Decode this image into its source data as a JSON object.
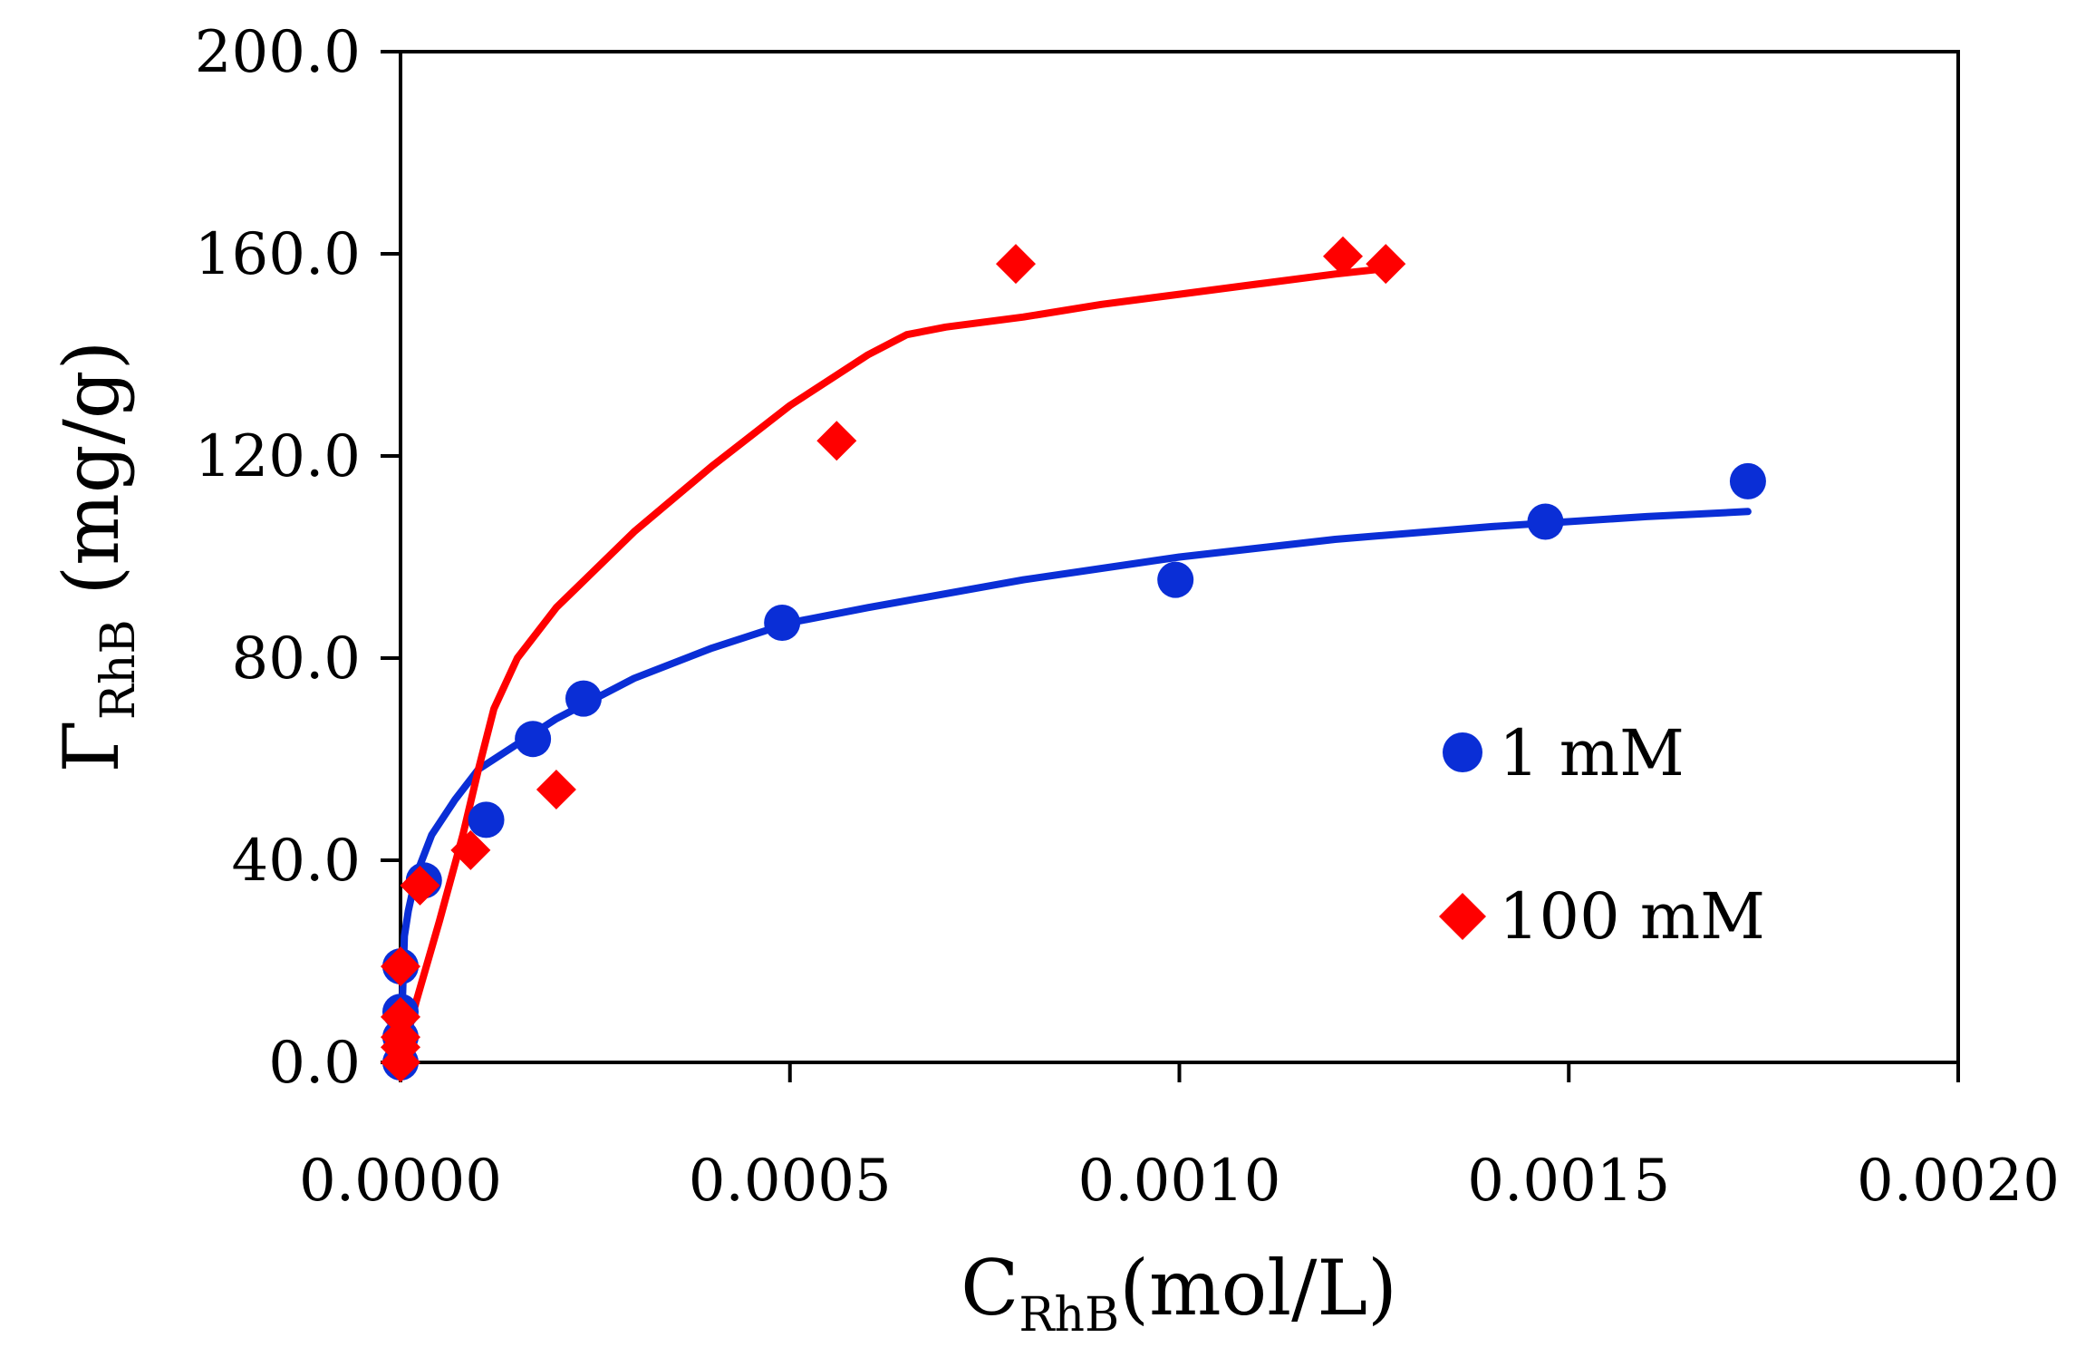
{
  "chart_data": {
    "type": "scatter",
    "xlim": [
      0,
      0.002
    ],
    "ylim": [
      0,
      200
    ],
    "x_ticks": [
      "0.0000",
      "0.0005",
      "0.0010",
      "0.0015",
      "0.0020"
    ],
    "y_ticks": [
      "0.0",
      "40.0",
      "80.0",
      "120.0",
      "160.0",
      "200.0"
    ],
    "x_tick_values": [
      0,
      0.0005,
      0.001,
      0.0015,
      0.002
    ],
    "y_tick_values": [
      0,
      40,
      80,
      120,
      160,
      200
    ],
    "xlabel_main": "C",
    "xlabel_sub": "RhB",
    "xlabel_tail": "(mol/L)",
    "ylabel_main": "Γ",
    "ylabel_sub": "RhB",
    "ylabel_tail": " (mg/g)",
    "grid": false,
    "legend_position": "right-middle",
    "series": [
      {
        "name": "1 mM",
        "marker": "circle",
        "color": "#0a2ed6",
        "points": [
          [
            0,
            0
          ],
          [
            0,
            5
          ],
          [
            0,
            10
          ],
          [
            0,
            19
          ],
          [
            3e-05,
            36
          ],
          [
            0.00011,
            48
          ],
          [
            0.00017,
            64
          ],
          [
            0.000235,
            72
          ],
          [
            0.00049,
            87
          ],
          [
            0.000995,
            95.5
          ],
          [
            0.00147,
            107
          ],
          [
            0.00173,
            115
          ]
        ],
        "fit": [
          [
            0,
            0
          ],
          [
            5e-06,
            25
          ],
          [
            1e-05,
            30
          ],
          [
            2e-05,
            37
          ],
          [
            4e-05,
            45
          ],
          [
            7e-05,
            52
          ],
          [
            0.0001,
            58
          ],
          [
            0.00015,
            63
          ],
          [
            0.0002,
            68
          ],
          [
            0.00025,
            72
          ],
          [
            0.0003,
            76
          ],
          [
            0.0004,
            82
          ],
          [
            0.0005,
            87
          ],
          [
            0.0006,
            90
          ],
          [
            0.0008,
            95.5
          ],
          [
            0.001,
            100
          ],
          [
            0.0012,
            103.5
          ],
          [
            0.0014,
            106
          ],
          [
            0.0016,
            108
          ],
          [
            0.00173,
            109
          ]
        ]
      },
      {
        "name": "100 mM",
        "marker": "diamond",
        "color": "#ff0000",
        "points": [
          [
            0,
            0
          ],
          [
            0,
            3
          ],
          [
            0,
            5
          ],
          [
            0,
            9
          ],
          [
            0,
            19
          ],
          [
            2.5e-05,
            35
          ],
          [
            9e-05,
            42
          ],
          [
            0.0002,
            54
          ],
          [
            0.00056,
            123
          ],
          [
            0.00079,
            158
          ],
          [
            0.00121,
            159.5
          ],
          [
            0.001265,
            158
          ]
        ],
        "fit": [
          [
            0,
            0
          ],
          [
            2e-05,
            12
          ],
          [
            5e-05,
            28
          ],
          [
            8e-05,
            45
          ],
          [
            0.0001,
            58
          ],
          [
            0.00012,
            70
          ],
          [
            0.00015,
            80
          ],
          [
            0.0002,
            90
          ],
          [
            0.0003,
            105
          ],
          [
            0.0004,
            118
          ],
          [
            0.0005,
            130
          ],
          [
            0.0006,
            140
          ],
          [
            0.00065,
            144
          ],
          [
            0.0007,
            145.5
          ],
          [
            0.0008,
            147.5
          ],
          [
            0.0009,
            150
          ],
          [
            0.001,
            152
          ],
          [
            0.0011,
            154
          ],
          [
            0.0012,
            156
          ],
          [
            0.00126,
            157
          ]
        ]
      }
    ]
  }
}
